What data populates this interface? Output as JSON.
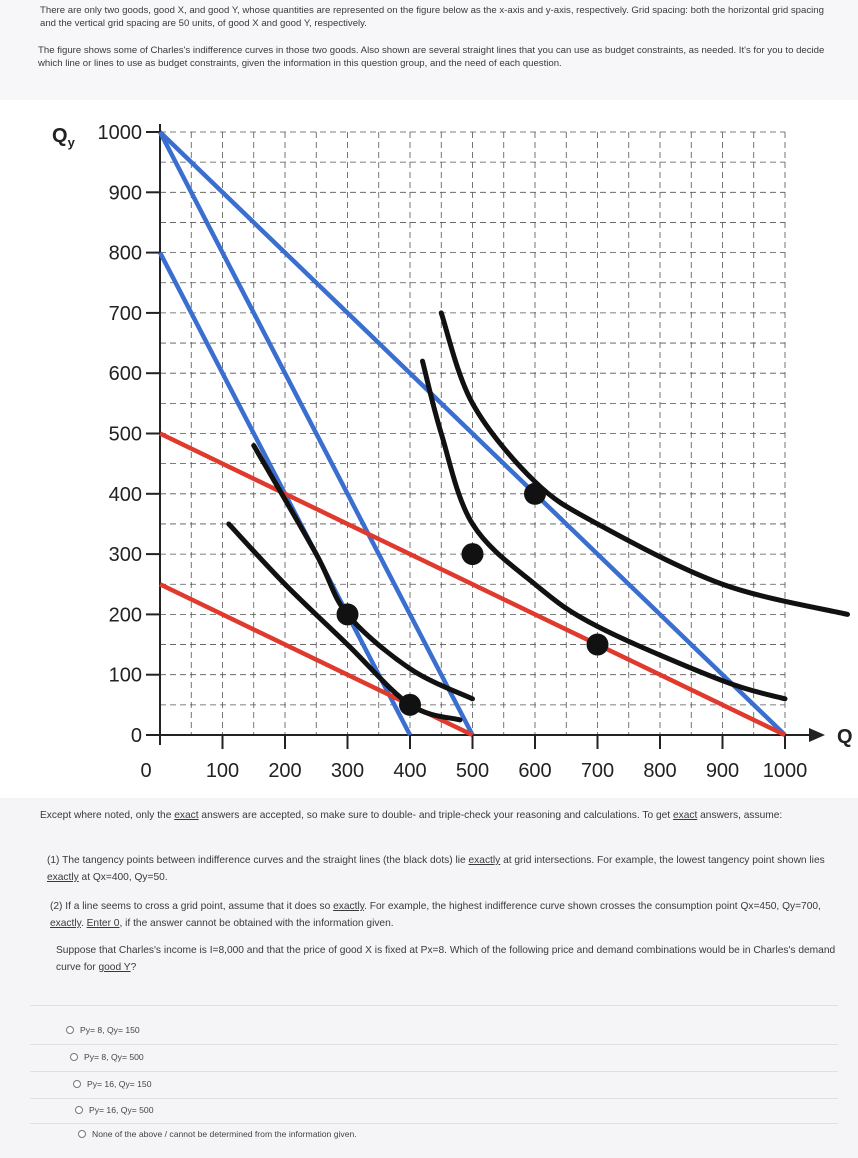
{
  "intro": {
    "p1": "There are only two goods, good X, and good Y, whose quantities are represented on the figure below as the x-axis and y-axis, respectively. Grid spacing: both the horizontal grid spacing and the vertical grid spacing are 50 units, of good X and good Y, respectively.",
    "p2": "The figure shows some of Charles's indifference curves in those two goods. Also shown are several straight lines that you can use as budget constraints, as needed. It's for you to decide which line or lines to use as budget constraints, given the information in this question group, and the need of each question."
  },
  "chart_data": {
    "type": "line",
    "y_axis_label_main": "Q",
    "y_axis_label_sub": "y",
    "x_axis_label": "Q",
    "x_axis_label_sub": "x",
    "x_ticks": [
      "0",
      "100",
      "200",
      "300",
      "400",
      "500",
      "600",
      "700",
      "800",
      "900",
      "1000"
    ],
    "y_ticks": [
      "0",
      "100",
      "200",
      "300",
      "400",
      "500",
      "600",
      "700",
      "800",
      "900",
      "1000"
    ],
    "xlim": [
      0,
      1000
    ],
    "ylim": [
      0,
      1000
    ],
    "grid": "dashed, 50 units",
    "lines": [
      {
        "color": "#3a6fd0",
        "points": [
          [
            0,
            1000
          ],
          [
            500,
            0
          ]
        ]
      },
      {
        "color": "#3a6fd0",
        "points": [
          [
            0,
            800
          ],
          [
            400,
            0
          ]
        ]
      },
      {
        "color": "#3a6fd0",
        "points": [
          [
            0,
            1000
          ],
          [
            1000,
            0
          ]
        ]
      },
      {
        "color": "#e03a2e",
        "points": [
          [
            0,
            500
          ],
          [
            1000,
            0
          ]
        ]
      },
      {
        "color": "#e03a2e",
        "points": [
          [
            0,
            250
          ],
          [
            500,
            0
          ]
        ]
      }
    ],
    "indifference_curves": [
      {
        "color": "#111111",
        "points": [
          [
            110,
            350
          ],
          [
            200,
            250
          ],
          [
            300,
            150
          ],
          [
            400,
            50
          ],
          [
            480,
            25
          ]
        ]
      },
      {
        "color": "#111111",
        "points": [
          [
            150,
            480
          ],
          [
            250,
            300
          ],
          [
            300,
            200
          ],
          [
            400,
            110
          ],
          [
            500,
            60
          ]
        ]
      },
      {
        "color": "#111111",
        "points": [
          [
            420,
            620
          ],
          [
            450,
            500
          ],
          [
            500,
            350
          ],
          [
            600,
            250
          ],
          [
            700,
            180
          ],
          [
            900,
            90
          ],
          [
            1000,
            60
          ]
        ]
      },
      {
        "color": "#111111",
        "points": [
          [
            450,
            700
          ],
          [
            500,
            550
          ],
          [
            600,
            420
          ],
          [
            700,
            350
          ],
          [
            900,
            250
          ],
          [
            1100,
            200
          ]
        ]
      }
    ],
    "tangency_points": [
      [
        400,
        50
      ],
      [
        300,
        200
      ],
      [
        500,
        300
      ],
      [
        700,
        150
      ],
      [
        600,
        400
      ]
    ]
  },
  "notes": {
    "main_a": "Except where noted, only the ",
    "main_u1": "exact",
    "main_b": " answers are accepted, so make sure to double- and triple-check your reasoning and calculations. To get ",
    "main_u2": "exact",
    "main_c": " answers, assume:",
    "n1_a": "(1) The tangency points between indifference curves and the straight lines (the black dots) lie ",
    "n1_u": "exactly",
    "n1_b": " at grid intersections. For example, the lowest tangency point shown lies ",
    "n1_u2": "exactly",
    "n1_c": " at Qx=400, Qy=50.",
    "n2_a": "(2) If a line seems to cross a grid point, assume that it does so ",
    "n2_u": "exactly",
    "n2_b": ". For example, the highest indifference curve shown crosses the consumption point Qx=450, Qy=700, ",
    "n2_u2": "exactly",
    "n2_c": ". ",
    "n2_u3": "Enter 0",
    "n2_d": ", if the answer cannot be obtained with the information given."
  },
  "question": {
    "a": "Suppose that Charles's income is I=8,000 and that the price of good X is fixed at Px=8. Which of the following price and demand combinations would be in Charles's demand curve for ",
    "u": "good Y",
    "b": "?"
  },
  "options": [
    "Py= 8, Qy= 150",
    "Py= 8, Qy= 500",
    "Py= 16, Qy= 150",
    "Py= 16, Qy= 500",
    "None of the above / cannot be determined from the information given."
  ]
}
